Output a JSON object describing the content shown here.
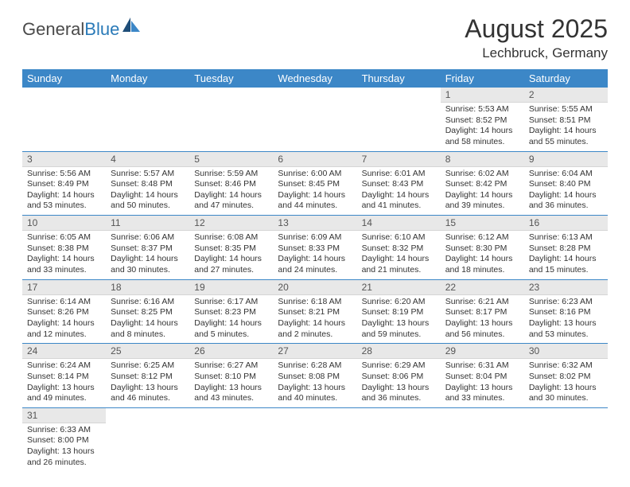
{
  "logo": {
    "text1": "General",
    "text2": "Blue",
    "text1_color": "#4a4a4a",
    "text2_color": "#2a7ab8",
    "icon_fill_dark": "#1f4e79",
    "icon_fill_light": "#3c87c7"
  },
  "header": {
    "title": "August 2025",
    "location": "Lechbruck, Germany"
  },
  "theme": {
    "header_row_bg": "#3c87c7",
    "header_row_text": "#ffffff",
    "daynum_bg": "#e8e8e8",
    "daynum_text": "#555555",
    "cell_border": "#3c87c7",
    "body_text": "#333333",
    "page_bg": "#ffffff"
  },
  "weekdays": [
    "Sunday",
    "Monday",
    "Tuesday",
    "Wednesday",
    "Thursday",
    "Friday",
    "Saturday"
  ],
  "weeks": [
    [
      {
        "day": "",
        "sunrise": "",
        "sunset": "",
        "daylight1": "",
        "daylight2": "",
        "empty": true
      },
      {
        "day": "",
        "sunrise": "",
        "sunset": "",
        "daylight1": "",
        "daylight2": "",
        "empty": true
      },
      {
        "day": "",
        "sunrise": "",
        "sunset": "",
        "daylight1": "",
        "daylight2": "",
        "empty": true
      },
      {
        "day": "",
        "sunrise": "",
        "sunset": "",
        "daylight1": "",
        "daylight2": "",
        "empty": true
      },
      {
        "day": "",
        "sunrise": "",
        "sunset": "",
        "daylight1": "",
        "daylight2": "",
        "empty": true
      },
      {
        "day": "1",
        "sunrise": "Sunrise: 5:53 AM",
        "sunset": "Sunset: 8:52 PM",
        "daylight1": "Daylight: 14 hours",
        "daylight2": "and 58 minutes."
      },
      {
        "day": "2",
        "sunrise": "Sunrise: 5:55 AM",
        "sunset": "Sunset: 8:51 PM",
        "daylight1": "Daylight: 14 hours",
        "daylight2": "and 55 minutes."
      }
    ],
    [
      {
        "day": "3",
        "sunrise": "Sunrise: 5:56 AM",
        "sunset": "Sunset: 8:49 PM",
        "daylight1": "Daylight: 14 hours",
        "daylight2": "and 53 minutes."
      },
      {
        "day": "4",
        "sunrise": "Sunrise: 5:57 AM",
        "sunset": "Sunset: 8:48 PM",
        "daylight1": "Daylight: 14 hours",
        "daylight2": "and 50 minutes."
      },
      {
        "day": "5",
        "sunrise": "Sunrise: 5:59 AM",
        "sunset": "Sunset: 8:46 PM",
        "daylight1": "Daylight: 14 hours",
        "daylight2": "and 47 minutes."
      },
      {
        "day": "6",
        "sunrise": "Sunrise: 6:00 AM",
        "sunset": "Sunset: 8:45 PM",
        "daylight1": "Daylight: 14 hours",
        "daylight2": "and 44 minutes."
      },
      {
        "day": "7",
        "sunrise": "Sunrise: 6:01 AM",
        "sunset": "Sunset: 8:43 PM",
        "daylight1": "Daylight: 14 hours",
        "daylight2": "and 41 minutes."
      },
      {
        "day": "8",
        "sunrise": "Sunrise: 6:02 AM",
        "sunset": "Sunset: 8:42 PM",
        "daylight1": "Daylight: 14 hours",
        "daylight2": "and 39 minutes."
      },
      {
        "day": "9",
        "sunrise": "Sunrise: 6:04 AM",
        "sunset": "Sunset: 8:40 PM",
        "daylight1": "Daylight: 14 hours",
        "daylight2": "and 36 minutes."
      }
    ],
    [
      {
        "day": "10",
        "sunrise": "Sunrise: 6:05 AM",
        "sunset": "Sunset: 8:38 PM",
        "daylight1": "Daylight: 14 hours",
        "daylight2": "and 33 minutes."
      },
      {
        "day": "11",
        "sunrise": "Sunrise: 6:06 AM",
        "sunset": "Sunset: 8:37 PM",
        "daylight1": "Daylight: 14 hours",
        "daylight2": "and 30 minutes."
      },
      {
        "day": "12",
        "sunrise": "Sunrise: 6:08 AM",
        "sunset": "Sunset: 8:35 PM",
        "daylight1": "Daylight: 14 hours",
        "daylight2": "and 27 minutes."
      },
      {
        "day": "13",
        "sunrise": "Sunrise: 6:09 AM",
        "sunset": "Sunset: 8:33 PM",
        "daylight1": "Daylight: 14 hours",
        "daylight2": "and 24 minutes."
      },
      {
        "day": "14",
        "sunrise": "Sunrise: 6:10 AM",
        "sunset": "Sunset: 8:32 PM",
        "daylight1": "Daylight: 14 hours",
        "daylight2": "and 21 minutes."
      },
      {
        "day": "15",
        "sunrise": "Sunrise: 6:12 AM",
        "sunset": "Sunset: 8:30 PM",
        "daylight1": "Daylight: 14 hours",
        "daylight2": "and 18 minutes."
      },
      {
        "day": "16",
        "sunrise": "Sunrise: 6:13 AM",
        "sunset": "Sunset: 8:28 PM",
        "daylight1": "Daylight: 14 hours",
        "daylight2": "and 15 minutes."
      }
    ],
    [
      {
        "day": "17",
        "sunrise": "Sunrise: 6:14 AM",
        "sunset": "Sunset: 8:26 PM",
        "daylight1": "Daylight: 14 hours",
        "daylight2": "and 12 minutes."
      },
      {
        "day": "18",
        "sunrise": "Sunrise: 6:16 AM",
        "sunset": "Sunset: 8:25 PM",
        "daylight1": "Daylight: 14 hours",
        "daylight2": "and 8 minutes."
      },
      {
        "day": "19",
        "sunrise": "Sunrise: 6:17 AM",
        "sunset": "Sunset: 8:23 PM",
        "daylight1": "Daylight: 14 hours",
        "daylight2": "and 5 minutes."
      },
      {
        "day": "20",
        "sunrise": "Sunrise: 6:18 AM",
        "sunset": "Sunset: 8:21 PM",
        "daylight1": "Daylight: 14 hours",
        "daylight2": "and 2 minutes."
      },
      {
        "day": "21",
        "sunrise": "Sunrise: 6:20 AM",
        "sunset": "Sunset: 8:19 PM",
        "daylight1": "Daylight: 13 hours",
        "daylight2": "and 59 minutes."
      },
      {
        "day": "22",
        "sunrise": "Sunrise: 6:21 AM",
        "sunset": "Sunset: 8:17 PM",
        "daylight1": "Daylight: 13 hours",
        "daylight2": "and 56 minutes."
      },
      {
        "day": "23",
        "sunrise": "Sunrise: 6:23 AM",
        "sunset": "Sunset: 8:16 PM",
        "daylight1": "Daylight: 13 hours",
        "daylight2": "and 53 minutes."
      }
    ],
    [
      {
        "day": "24",
        "sunrise": "Sunrise: 6:24 AM",
        "sunset": "Sunset: 8:14 PM",
        "daylight1": "Daylight: 13 hours",
        "daylight2": "and 49 minutes."
      },
      {
        "day": "25",
        "sunrise": "Sunrise: 6:25 AM",
        "sunset": "Sunset: 8:12 PM",
        "daylight1": "Daylight: 13 hours",
        "daylight2": "and 46 minutes."
      },
      {
        "day": "26",
        "sunrise": "Sunrise: 6:27 AM",
        "sunset": "Sunset: 8:10 PM",
        "daylight1": "Daylight: 13 hours",
        "daylight2": "and 43 minutes."
      },
      {
        "day": "27",
        "sunrise": "Sunrise: 6:28 AM",
        "sunset": "Sunset: 8:08 PM",
        "daylight1": "Daylight: 13 hours",
        "daylight2": "and 40 minutes."
      },
      {
        "day": "28",
        "sunrise": "Sunrise: 6:29 AM",
        "sunset": "Sunset: 8:06 PM",
        "daylight1": "Daylight: 13 hours",
        "daylight2": "and 36 minutes."
      },
      {
        "day": "29",
        "sunrise": "Sunrise: 6:31 AM",
        "sunset": "Sunset: 8:04 PM",
        "daylight1": "Daylight: 13 hours",
        "daylight2": "and 33 minutes."
      },
      {
        "day": "30",
        "sunrise": "Sunrise: 6:32 AM",
        "sunset": "Sunset: 8:02 PM",
        "daylight1": "Daylight: 13 hours",
        "daylight2": "and 30 minutes."
      }
    ],
    [
      {
        "day": "31",
        "sunrise": "Sunrise: 6:33 AM",
        "sunset": "Sunset: 8:00 PM",
        "daylight1": "Daylight: 13 hours",
        "daylight2": "and 26 minutes."
      },
      {
        "day": "",
        "sunrise": "",
        "sunset": "",
        "daylight1": "",
        "daylight2": "",
        "empty": true
      },
      {
        "day": "",
        "sunrise": "",
        "sunset": "",
        "daylight1": "",
        "daylight2": "",
        "empty": true
      },
      {
        "day": "",
        "sunrise": "",
        "sunset": "",
        "daylight1": "",
        "daylight2": "",
        "empty": true
      },
      {
        "day": "",
        "sunrise": "",
        "sunset": "",
        "daylight1": "",
        "daylight2": "",
        "empty": true
      },
      {
        "day": "",
        "sunrise": "",
        "sunset": "",
        "daylight1": "",
        "daylight2": "",
        "empty": true
      },
      {
        "day": "",
        "sunrise": "",
        "sunset": "",
        "daylight1": "",
        "daylight2": "",
        "empty": true
      }
    ]
  ]
}
